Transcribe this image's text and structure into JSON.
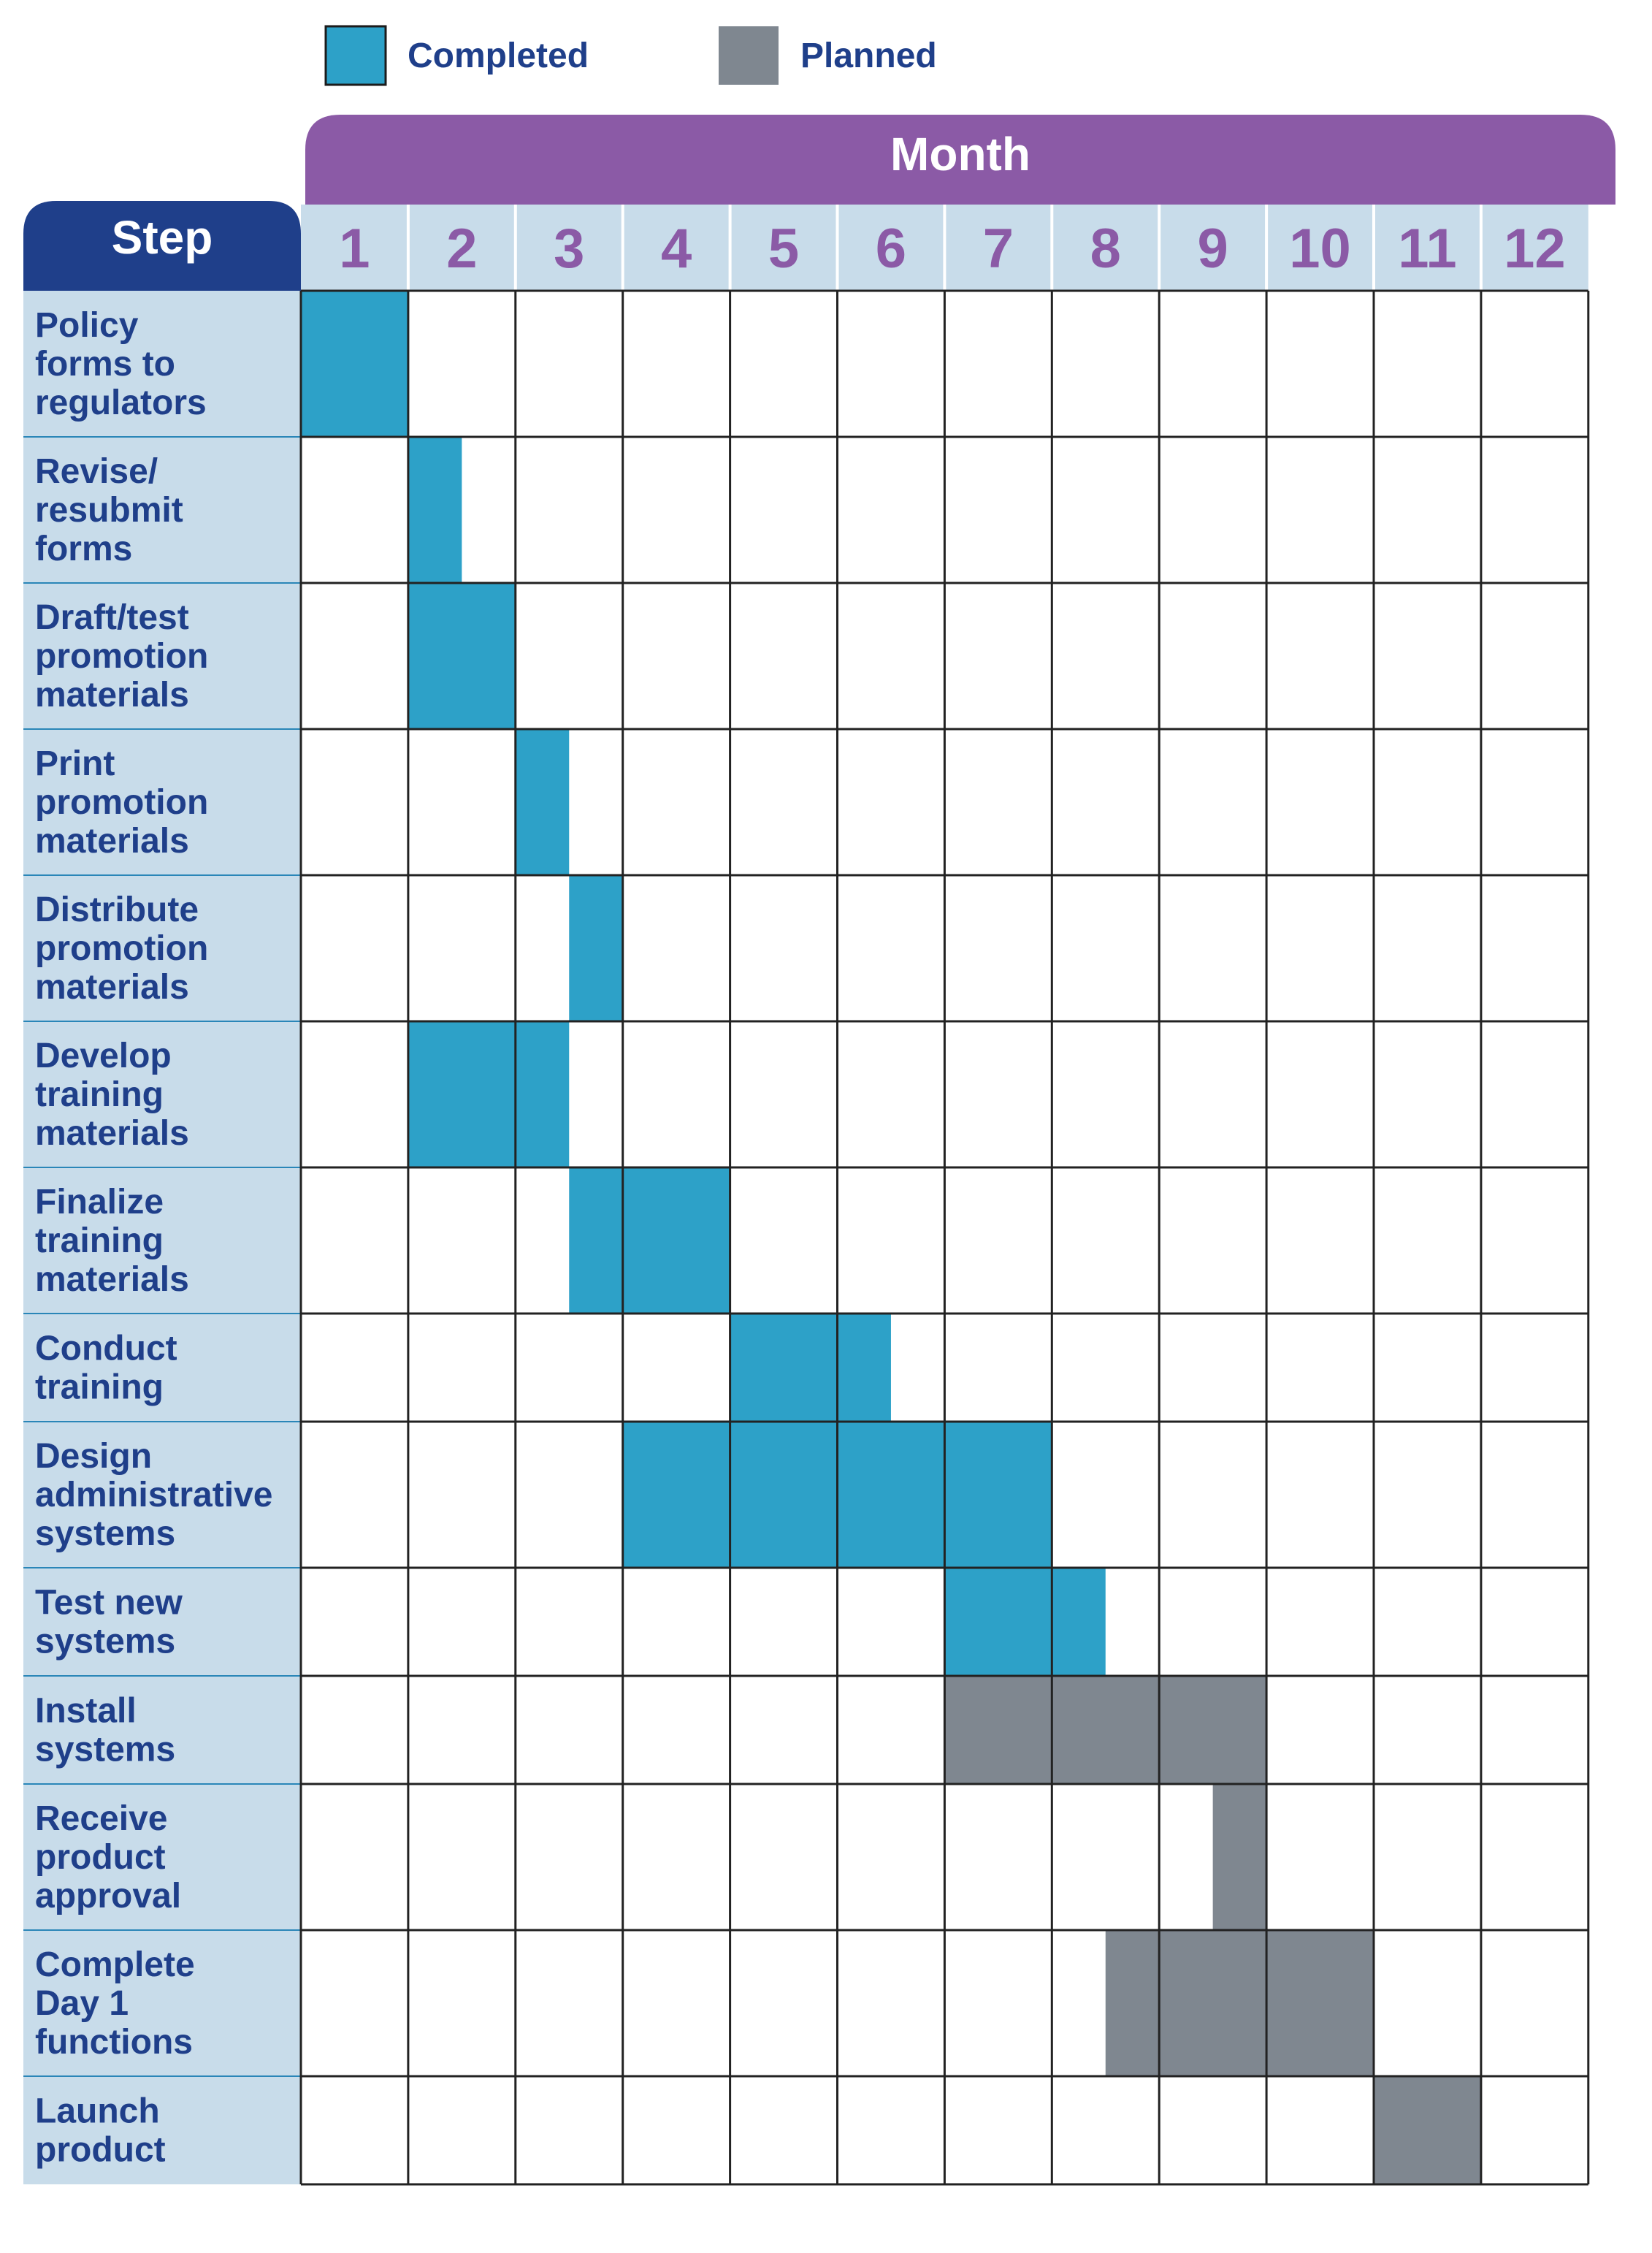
{
  "chart_data": {
    "type": "gantt",
    "legend": [
      {
        "name": "Completed",
        "color": "#2da1c8"
      },
      {
        "name": "Planned",
        "color": "#7f8790"
      }
    ],
    "header": {
      "months_title": "Month",
      "steps_title": "Step"
    },
    "months": [
      "1",
      "2",
      "3",
      "4",
      "5",
      "6",
      "7",
      "8",
      "9",
      "10",
      "11",
      "12"
    ],
    "colors": {
      "month_band": "#8b5aa6",
      "step_band": "#1f3f8a",
      "label_bg": "#c8dcea",
      "label_text": "#1f3f8a",
      "month_text": "#8b5aa6"
    },
    "tasks": [
      {
        "label": [
          "Policy",
          "forms to",
          "regulators"
        ],
        "status": "Completed",
        "start": 1,
        "end": 2
      },
      {
        "label": [
          "Revise/",
          "resubmit",
          "forms"
        ],
        "status": "Completed",
        "start": 2,
        "end": 2.5
      },
      {
        "label": [
          "Draft/test",
          "promotion",
          "materials"
        ],
        "status": "Completed",
        "start": 2,
        "end": 3
      },
      {
        "label": [
          "Print",
          "promotion",
          "materials"
        ],
        "status": "Completed",
        "start": 3,
        "end": 3.5
      },
      {
        "label": [
          "Distribute",
          "promotion",
          "materials"
        ],
        "status": "Completed",
        "start": 3.5,
        "end": 4
      },
      {
        "label": [
          "Develop",
          "training",
          "materials"
        ],
        "status": "Completed",
        "start": 2,
        "end": 3.5
      },
      {
        "label": [
          "Finalize",
          "training",
          "materials"
        ],
        "status": "Completed",
        "start": 3.5,
        "end": 5
      },
      {
        "label": [
          "Conduct",
          "training"
        ],
        "status": "Completed",
        "start": 5,
        "end": 6.5
      },
      {
        "label": [
          "Design",
          "administrative",
          "systems"
        ],
        "status": "Completed",
        "start": 4,
        "end": 8
      },
      {
        "label": [
          "Test new",
          "systems"
        ],
        "status": "Completed",
        "start": 7,
        "end": 8.5
      },
      {
        "label": [
          "Install",
          "systems"
        ],
        "status": "Planned",
        "start": 7,
        "end": 10
      },
      {
        "label": [
          "Receive",
          "product",
          "approval"
        ],
        "status": "Planned",
        "start": 9.5,
        "end": 10
      },
      {
        "label": [
          "Complete",
          "Day 1",
          "functions"
        ],
        "status": "Planned",
        "start": 8.5,
        "end": 11
      },
      {
        "label": [
          "Launch",
          "product"
        ],
        "status": "Planned",
        "start": 11,
        "end": 12
      }
    ]
  }
}
